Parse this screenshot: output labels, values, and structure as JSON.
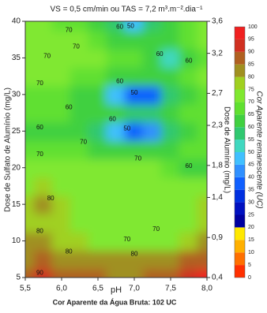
{
  "chart_data": {
    "type": "contour",
    "title": "VS = 0,5 cm/min ou TAS = 7,2 m³.m⁻².dia⁻¹",
    "x_label": "pH",
    "y_label": "Dose de Sulfato de Alumínio (mg/L)",
    "y2_label": "Dose de Alumínio (mg/L)",
    "caption": "Cor Aparente da Água Bruta: 102 UC",
    "colorbar_label": "Cor Aparente remanescente (UC)",
    "x": [
      5.5,
      5.75,
      6.0,
      6.25,
      6.5,
      6.75,
      7.0,
      7.25,
      7.5,
      7.75,
      8.0
    ],
    "y": [
      5,
      7.5,
      10,
      12.5,
      15,
      17.5,
      20,
      22.5,
      25,
      27.5,
      30,
      32.5,
      35,
      37.5,
      40
    ],
    "z": [
      [
        88,
        90,
        88,
        86,
        85,
        84,
        84,
        85,
        88,
        92,
        95
      ],
      [
        84,
        85,
        82,
        80,
        80,
        80,
        80,
        80,
        82,
        85,
        88
      ],
      [
        80,
        80,
        78,
        76,
        74,
        72,
        70,
        70,
        72,
        76,
        80
      ],
      [
        76,
        76,
        75,
        74,
        73,
        72,
        72,
        73,
        74,
        74,
        75
      ],
      [
        78,
        80,
        76,
        74,
        73,
        72,
        72,
        73,
        74,
        74,
        75
      ],
      [
        74,
        76,
        74,
        72,
        72,
        72,
        72,
        72,
        72,
        70,
        70
      ],
      [
        72,
        72,
        72,
        72,
        71,
        70,
        70,
        70,
        68,
        60,
        64
      ],
      [
        68,
        68,
        66,
        65,
        64,
        62,
        60,
        60,
        62,
        66,
        68
      ],
      [
        64,
        62,
        62,
        60,
        56,
        45,
        35,
        40,
        55,
        64,
        68
      ],
      [
        66,
        66,
        65,
        64,
        62,
        60,
        56,
        56,
        60,
        66,
        68
      ],
      [
        68,
        68,
        66,
        64,
        60,
        45,
        35,
        38,
        55,
        64,
        68
      ],
      [
        70,
        70,
        70,
        68,
        66,
        64,
        62,
        62,
        64,
        68,
        70
      ],
      [
        74,
        72,
        72,
        70,
        70,
        68,
        66,
        62,
        50,
        60,
        68
      ],
      [
        72,
        72,
        70,
        70,
        66,
        62,
        62,
        64,
        64,
        68,
        72
      ],
      [
        70,
        70,
        68,
        66,
        60,
        55,
        45,
        55,
        62,
        66,
        70
      ]
    ],
    "xlim": [
      5.5,
      8.0
    ],
    "xticks": [
      {
        "value": 5.5,
        "label": "5,5"
      },
      {
        "value": 6.0,
        "label": "6,0"
      },
      {
        "value": 6.5,
        "label": "6,5"
      },
      {
        "value": 7.0,
        "label": "7,0"
      },
      {
        "value": 7.5,
        "label": "7,5"
      },
      {
        "value": 8.0,
        "label": "8,0"
      }
    ],
    "ylim": [
      5,
      40
    ],
    "yticks": [
      5,
      10,
      15,
      20,
      25,
      30,
      35,
      40
    ],
    "y2lim": [
      0.4,
      3.6
    ],
    "y2ticks": [
      {
        "value": 0.4,
        "label": "0,4"
      },
      {
        "value": 0.9,
        "label": "0,9"
      },
      {
        "value": 1.4,
        "label": "1,4"
      },
      {
        "value": 1.8,
        "label": "1,8"
      },
      {
        "value": 2.3,
        "label": "2,3"
      },
      {
        "value": 2.7,
        "label": "2,7"
      },
      {
        "value": 3.2,
        "label": "3,2"
      },
      {
        "value": 3.6,
        "label": "3,6"
      }
    ],
    "levels": [
      0,
      5,
      10,
      15,
      20,
      25,
      30,
      35,
      40,
      45,
      50,
      55,
      60,
      65,
      70,
      75,
      80,
      85,
      90,
      95,
      100
    ],
    "colors": [
      "#ff3000",
      "#ff7000",
      "#ffb000",
      "#ffe800",
      "#0000a0",
      "#0010c0",
      "#0030e0",
      "#1060ff",
      "#3090ff",
      "#40c0ff",
      "#40d8c0",
      "#30c870",
      "#40d040",
      "#60e030",
      "#80e830",
      "#a0d020",
      "#a09020",
      "#b06020",
      "#d03020",
      "#f02020"
    ],
    "contour_labels": [
      {
        "label": 70,
        "x": 6.1,
        "y": 38.8
      },
      {
        "label": 60,
        "x": 6.8,
        "y": 39.2
      },
      {
        "label": 50,
        "x": 6.95,
        "y": 39.3
      },
      {
        "label": 70,
        "x": 5.8,
        "y": 35.2
      },
      {
        "label": 70,
        "x": 6.2,
        "y": 36.5
      },
      {
        "label": 60,
        "x": 7.35,
        "y": 35.5
      },
      {
        "label": 60,
        "x": 7.75,
        "y": 34.6
      },
      {
        "label": 70,
        "x": 5.7,
        "y": 31.5
      },
      {
        "label": 60,
        "x": 6.8,
        "y": 31.8
      },
      {
        "label": 50,
        "x": 7.0,
        "y": 30.2
      },
      {
        "label": 60,
        "x": 6.1,
        "y": 28.2
      },
      {
        "label": 60,
        "x": 5.7,
        "y": 25.5
      },
      {
        "label": 60,
        "x": 6.7,
        "y": 26.6
      },
      {
        "label": 50,
        "x": 6.9,
        "y": 25.3
      },
      {
        "label": 70,
        "x": 6.3,
        "y": 23.5
      },
      {
        "label": 70,
        "x": 5.7,
        "y": 21.8
      },
      {
        "label": 70,
        "x": 7.05,
        "y": 21.2
      },
      {
        "label": 60,
        "x": 7.75,
        "y": 20.2
      },
      {
        "label": 80,
        "x": 5.85,
        "y": 15.8
      },
      {
        "label": 80,
        "x": 5.7,
        "y": 11.3
      },
      {
        "label": 70,
        "x": 6.9,
        "y": 10.2
      },
      {
        "label": 70,
        "x": 7.3,
        "y": 11.6
      },
      {
        "label": 80,
        "x": 6.1,
        "y": 8.5
      },
      {
        "label": 80,
        "x": 7.0,
        "y": 8.2
      },
      {
        "label": 90,
        "x": 5.7,
        "y": 5.6
      }
    ]
  }
}
